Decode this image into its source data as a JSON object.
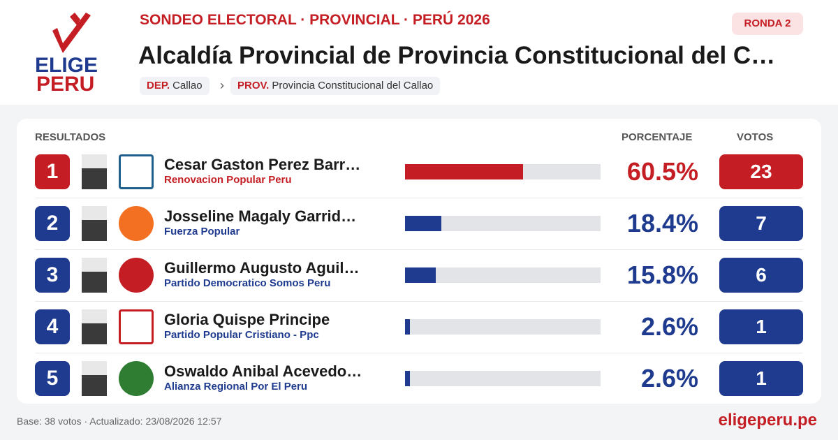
{
  "brand": {
    "line1": "ELIGE",
    "line2": "PERU"
  },
  "header": {
    "kicker": "SONDEO ELECTORAL · PROVINCIAL · PERÚ 2026",
    "title": "Alcaldía Provincial de Provincia Constitucional del C…",
    "badge": "RONDA 2",
    "breadcrumb": {
      "dep_label": "DEP.",
      "dep": "Callao",
      "sep": "›",
      "prov_label": "PROV.",
      "prov": "Provincia Constitucional del Callao"
    }
  },
  "table": {
    "columns": {
      "results": "RESULTADOS",
      "percent": "PORCENTAJE",
      "votes": "VOTOS"
    },
    "rows": [
      {
        "rank": 1,
        "name": "Cesar Gaston Perez Barr…",
        "party": "Renovacion Popular Peru",
        "pct": {
          "value": 60.5,
          "label": "60.5%"
        },
        "votes": 23
      },
      {
        "rank": 2,
        "name": "Josseline Magaly Garrid…",
        "party": "Fuerza Popular",
        "pct": {
          "value": 18.4,
          "label": "18.4%"
        },
        "votes": 7
      },
      {
        "rank": 3,
        "name": "Guillermo Augusto Aguil…",
        "party": "Partido Democratico Somos Peru",
        "pct": {
          "value": 15.8,
          "label": "15.8%"
        },
        "votes": 6
      },
      {
        "rank": 4,
        "name": "Gloria Quispe Principe",
        "party": "Partido Popular Cristiano - Ppc",
        "pct": {
          "value": 2.6,
          "label": "2.6%"
        },
        "votes": 1
      },
      {
        "rank": 5,
        "name": "Oswaldo Anibal Acevedo…",
        "party": "Alianza Regional Por El Peru",
        "pct": {
          "value": 2.6,
          "label": "2.6%"
        },
        "votes": 1
      }
    ]
  },
  "footer": {
    "note": "Base: 38 votos · Actualizado: 23/08/2026 12:57",
    "site": "eligeperu.pe"
  }
}
